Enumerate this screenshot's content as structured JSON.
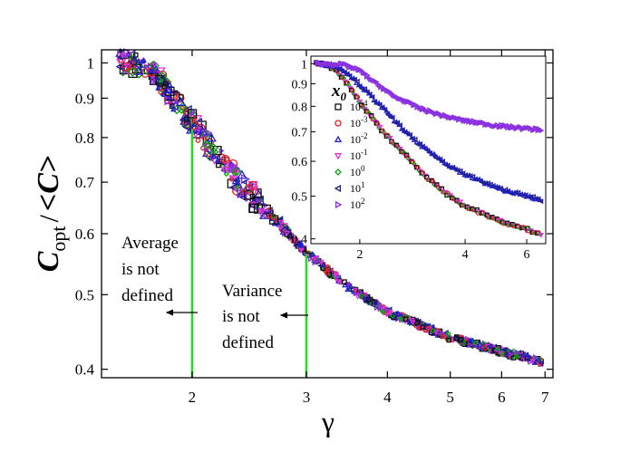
{
  "chart_data": [
    {
      "type": "scatter",
      "role": "main",
      "xlabel": "γ",
      "ylabel_parts": {
        "c": "C",
        "sub": "opt",
        "slash": "/",
        "avg": "<C>"
      },
      "xscale": "log",
      "yscale": "log",
      "xlim": [
        1.45,
        7.2
      ],
      "ylim": [
        0.39,
        1.04
      ],
      "xticks": [
        {
          "value": 2,
          "label": "2"
        },
        {
          "value": 3,
          "label": "3"
        },
        {
          "value": 4,
          "label": "4"
        },
        {
          "value": 5,
          "label": "5"
        },
        {
          "value": 6,
          "label": "6"
        },
        {
          "value": 7,
          "label": "7"
        }
      ],
      "yticks": [
        {
          "value": 0.4,
          "label": "0.4"
        },
        {
          "value": 0.5,
          "label": "0.5"
        },
        {
          "value": 0.6,
          "label": "0.6"
        },
        {
          "value": 0.7,
          "label": "0.7"
        },
        {
          "value": 0.8,
          "label": "0.8"
        },
        {
          "value": 0.9,
          "label": "0.9"
        },
        {
          "value": 1.0,
          "label": "1"
        }
      ],
      "curve": [
        {
          "x": 1.55,
          "y": 1.0
        },
        {
          "x": 1.65,
          "y": 0.998
        },
        {
          "x": 1.75,
          "y": 0.975
        },
        {
          "x": 1.85,
          "y": 0.91
        },
        {
          "x": 2.0,
          "y": 0.84
        },
        {
          "x": 2.2,
          "y": 0.75
        },
        {
          "x": 2.4,
          "y": 0.69
        },
        {
          "x": 2.6,
          "y": 0.645
        },
        {
          "x": 3.0,
          "y": 0.567
        },
        {
          "x": 3.5,
          "y": 0.51
        },
        {
          "x": 4.0,
          "y": 0.475
        },
        {
          "x": 5.0,
          "y": 0.44
        },
        {
          "x": 6.0,
          "y": 0.422
        },
        {
          "x": 7.0,
          "y": 0.408
        }
      ],
      "vertical_lines": [
        {
          "x": 2,
          "y_top": 0.82,
          "color": "#22dd22"
        },
        {
          "x": 3,
          "y_top": 0.565,
          "color": "#22dd22"
        }
      ],
      "annotations": [
        {
          "id": "average",
          "lines": [
            "Average",
            "is not",
            "defined"
          ]
        },
        {
          "id": "variance",
          "lines": [
            "Variance",
            "is not",
            "defined"
          ]
        }
      ]
    },
    {
      "type": "scatter",
      "role": "inset",
      "xscale": "log",
      "yscale": "log",
      "xlim": [
        1.45,
        6.8
      ],
      "ylim": [
        0.39,
        1.04
      ],
      "xticks": [
        {
          "value": 2,
          "label": "2"
        },
        {
          "value": 4,
          "label": "4"
        },
        {
          "value": 6,
          "label": "6"
        }
      ],
      "yticks": [
        {
          "value": 0.4,
          "label": "0.4"
        },
        {
          "value": 0.5,
          "label": "0.5"
        },
        {
          "value": 0.6,
          "label": "0.6"
        },
        {
          "value": 0.7,
          "label": "0.7"
        },
        {
          "value": 0.8,
          "label": "0.8"
        },
        {
          "value": 0.9,
          "label": "0.9"
        },
        {
          "value": 1.0,
          "label": "1"
        }
      ],
      "curves": [
        {
          "name": "low",
          "points": [
            {
              "x": 1.5,
              "y": 1.0
            },
            {
              "x": 1.6,
              "y": 0.995
            },
            {
              "x": 1.7,
              "y": 0.97
            },
            {
              "x": 1.85,
              "y": 0.9
            },
            {
              "x": 2.0,
              "y": 0.82
            },
            {
              "x": 2.3,
              "y": 0.71
            },
            {
              "x": 2.7,
              "y": 0.62
            },
            {
              "x": 3.0,
              "y": 0.565
            },
            {
              "x": 3.5,
              "y": 0.51
            },
            {
              "x": 4.0,
              "y": 0.475
            },
            {
              "x": 5.0,
              "y": 0.44
            },
            {
              "x": 6.0,
              "y": 0.42
            },
            {
              "x": 6.6,
              "y": 0.41
            }
          ]
        },
        {
          "name": "mid",
          "points": [
            {
              "x": 1.5,
              "y": 1.0
            },
            {
              "x": 1.7,
              "y": 0.99
            },
            {
              "x": 1.85,
              "y": 0.95
            },
            {
              "x": 2.0,
              "y": 0.895
            },
            {
              "x": 2.3,
              "y": 0.8
            },
            {
              "x": 2.7,
              "y": 0.7
            },
            {
              "x": 3.0,
              "y": 0.65
            },
            {
              "x": 3.5,
              "y": 0.595
            },
            {
              "x": 4.0,
              "y": 0.56
            },
            {
              "x": 5.0,
              "y": 0.52
            },
            {
              "x": 6.0,
              "y": 0.5
            },
            {
              "x": 6.6,
              "y": 0.49
            }
          ]
        },
        {
          "name": "high",
          "points": [
            {
              "x": 1.5,
              "y": 1.0
            },
            {
              "x": 1.8,
              "y": 0.995
            },
            {
              "x": 2.0,
              "y": 0.965
            },
            {
              "x": 2.2,
              "y": 0.91
            },
            {
              "x": 2.5,
              "y": 0.845
            },
            {
              "x": 3.0,
              "y": 0.79
            },
            {
              "x": 3.5,
              "y": 0.76
            },
            {
              "x": 4.0,
              "y": 0.742
            },
            {
              "x": 5.0,
              "y": 0.722
            },
            {
              "x": 6.0,
              "y": 0.712
            },
            {
              "x": 6.6,
              "y": 0.708
            }
          ]
        }
      ],
      "legend": {
        "title": "x",
        "title_sub": "0",
        "placement": "inside-left",
        "entries": [
          {
            "base": "10",
            "exp": "-4",
            "marker": "square",
            "color": "#111111"
          },
          {
            "base": "10",
            "exp": "-3",
            "marker": "circle",
            "color": "#e02020"
          },
          {
            "base": "10",
            "exp": "-2",
            "marker": "triangle-up",
            "color": "#2020d0"
          },
          {
            "base": "10",
            "exp": "-1",
            "marker": "triangle-down",
            "color": "#e030e0"
          },
          {
            "base": "10",
            "exp": "0",
            "marker": "diamond",
            "color": "#10a010"
          },
          {
            "base": "10",
            "exp": "1",
            "marker": "triangle-left",
            "color": "#20208a"
          },
          {
            "base": "10",
            "exp": "2",
            "marker": "triangle-right",
            "color": "#8a30e0"
          }
        ]
      }
    }
  ]
}
